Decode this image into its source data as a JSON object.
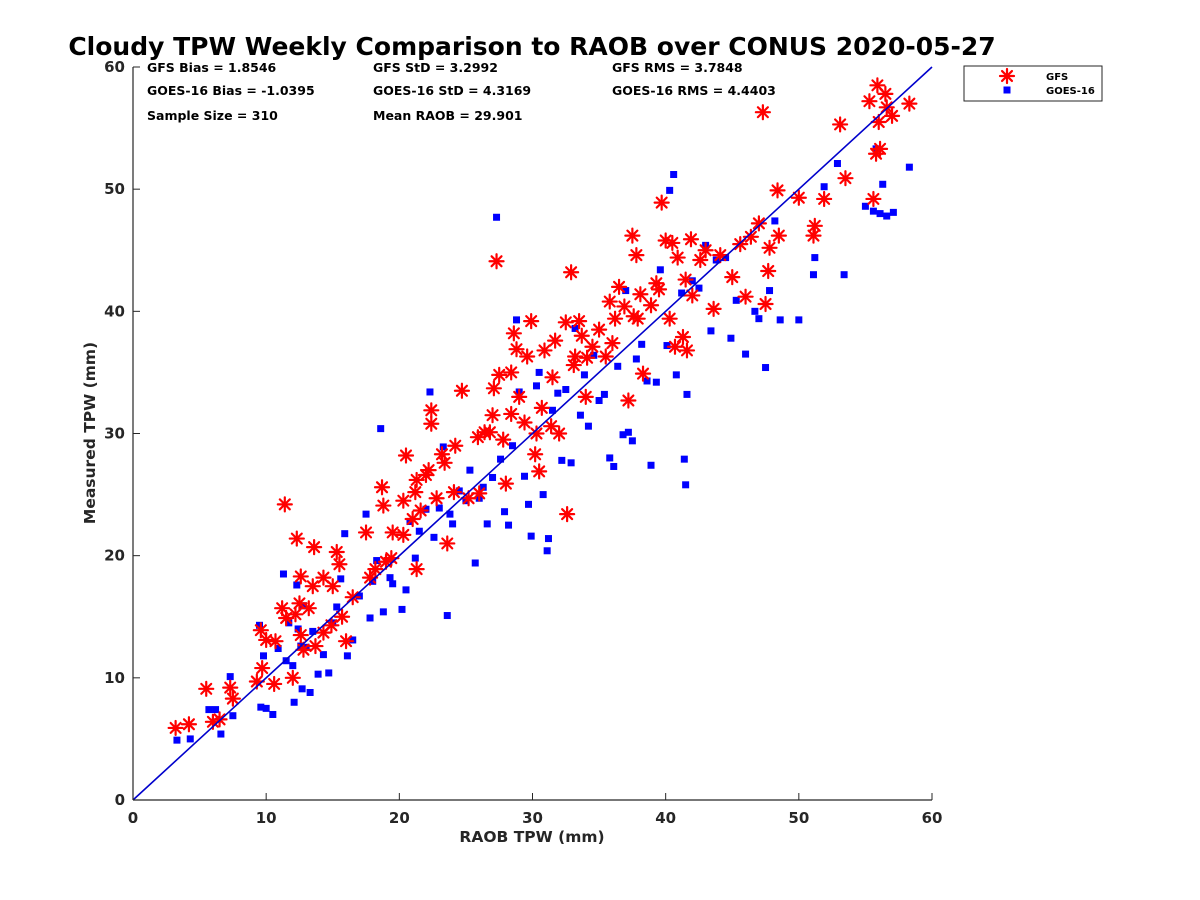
{
  "chart_data": {
    "type": "scatter",
    "title": "Cloudy TPW Weekly Comparison to RAOB over CONUS 2020-05-27",
    "xlabel": "RAOB TPW (mm)",
    "ylabel": "Measured TPW (mm)",
    "xlim": [
      0,
      60
    ],
    "ylim": [
      0,
      60
    ],
    "xticks": [
      "0",
      "10",
      "20",
      "30",
      "40",
      "50",
      "60"
    ],
    "yticks": [
      "0",
      "10",
      "20",
      "30",
      "40",
      "50",
      "60"
    ],
    "grid": false,
    "legend_position": "outside top-right",
    "reference_line": {
      "from": [
        0,
        0
      ],
      "to": [
        60,
        60
      ],
      "color": "#0000cc"
    },
    "stats": {
      "gfs_bias": "GFS Bias = 1.8546",
      "goes_bias": "GOES-16 Bias = -1.0395",
      "sample_size": "Sample Size = 310",
      "gfs_std": "GFS StD = 3.2992",
      "goes_std": "GOES-16 StD = 4.3169",
      "mean_raob": "Mean RAOB = 29.901",
      "gfs_rms": "GFS RMS = 3.7848",
      "goes_rms": "GOES-16 RMS = 4.4403"
    },
    "series": [
      {
        "name": "GFS",
        "color": "#ff0000",
        "marker": "asterisk",
        "points": [
          [
            3.2,
            5.9
          ],
          [
            4.2,
            6.2
          ],
          [
            5.5,
            9.1
          ],
          [
            6.0,
            6.4
          ],
          [
            6.5,
            6.6
          ],
          [
            7.3,
            9.2
          ],
          [
            7.5,
            8.3
          ],
          [
            9.3,
            9.7
          ],
          [
            9.7,
            10.8
          ],
          [
            10.0,
            13.1
          ],
          [
            9.6,
            13.9
          ],
          [
            10.6,
            9.5
          ],
          [
            10.7,
            13.0
          ],
          [
            11.2,
            15.7
          ],
          [
            11.4,
            24.2
          ],
          [
            11.5,
            14.9
          ],
          [
            12.0,
            10.0
          ],
          [
            12.2,
            15.2
          ],
          [
            12.3,
            21.4
          ],
          [
            12.5,
            16.1
          ],
          [
            12.6,
            13.5
          ],
          [
            12.6,
            18.3
          ],
          [
            12.8,
            12.3
          ],
          [
            13.2,
            15.7
          ],
          [
            13.5,
            17.5
          ],
          [
            13.6,
            20.7
          ],
          [
            13.7,
            12.6
          ],
          [
            14.3,
            18.2
          ],
          [
            14.3,
            13.7
          ],
          [
            14.9,
            14.3
          ],
          [
            15.0,
            17.5
          ],
          [
            15.3,
            20.3
          ],
          [
            15.5,
            19.3
          ],
          [
            15.7,
            15.0
          ],
          [
            16.0,
            13.0
          ],
          [
            16.5,
            16.6
          ],
          [
            17.5,
            21.9
          ],
          [
            17.8,
            18.2
          ],
          [
            18.2,
            18.9
          ],
          [
            18.7,
            25.6
          ],
          [
            18.8,
            24.1
          ],
          [
            19.0,
            19.5
          ],
          [
            19.4,
            19.8
          ],
          [
            19.5,
            21.9
          ],
          [
            20.3,
            21.7
          ],
          [
            20.3,
            24.5
          ],
          [
            20.5,
            28.2
          ],
          [
            21.0,
            23.0
          ],
          [
            21.2,
            25.2
          ],
          [
            21.3,
            26.2
          ],
          [
            21.3,
            18.9
          ],
          [
            21.6,
            23.7
          ],
          [
            22.0,
            26.6
          ],
          [
            22.2,
            27.0
          ],
          [
            22.4,
            31.9
          ],
          [
            22.4,
            30.8
          ],
          [
            22.8,
            24.7
          ],
          [
            23.2,
            28.3
          ],
          [
            23.4,
            27.6
          ],
          [
            23.6,
            21.0
          ],
          [
            24.1,
            25.2
          ],
          [
            24.2,
            29.0
          ],
          [
            24.7,
            33.5
          ],
          [
            25.2,
            24.7
          ],
          [
            25.9,
            29.7
          ],
          [
            26.0,
            25.1
          ],
          [
            26.4,
            30.1
          ],
          [
            26.8,
            30.1
          ],
          [
            27.0,
            31.5
          ],
          [
            27.1,
            33.7
          ],
          [
            27.3,
            44.1
          ],
          [
            27.5,
            34.8
          ],
          [
            27.8,
            29.5
          ],
          [
            28.0,
            25.9
          ],
          [
            28.4,
            35.0
          ],
          [
            28.4,
            31.6
          ],
          [
            28.6,
            38.2
          ],
          [
            28.8,
            36.9
          ],
          [
            29.0,
            33.0
          ],
          [
            29.4,
            30.9
          ],
          [
            29.6,
            36.3
          ],
          [
            29.9,
            39.2
          ],
          [
            30.2,
            28.3
          ],
          [
            30.3,
            30.0
          ],
          [
            30.5,
            26.9
          ],
          [
            30.7,
            32.1
          ],
          [
            30.9,
            36.8
          ],
          [
            31.4,
            30.6
          ],
          [
            31.5,
            34.6
          ],
          [
            31.7,
            37.6
          ],
          [
            32.0,
            30.0
          ],
          [
            32.5,
            39.1
          ],
          [
            32.6,
            23.4
          ],
          [
            32.9,
            43.2
          ],
          [
            33.1,
            35.6
          ],
          [
            33.2,
            36.3
          ],
          [
            33.5,
            39.2
          ],
          [
            33.7,
            38.0
          ],
          [
            34.0,
            33.0
          ],
          [
            34.1,
            36.2
          ],
          [
            34.5,
            37.1
          ],
          [
            35.0,
            38.5
          ],
          [
            35.5,
            36.3
          ],
          [
            35.8,
            40.8
          ],
          [
            36.0,
            37.4
          ],
          [
            36.2,
            39.4
          ],
          [
            36.5,
            42.0
          ],
          [
            36.9,
            40.4
          ],
          [
            37.2,
            32.7
          ],
          [
            37.5,
            46.2
          ],
          [
            37.6,
            39.6
          ],
          [
            37.8,
            44.6
          ],
          [
            37.9,
            39.4
          ],
          [
            38.1,
            41.4
          ],
          [
            38.3,
            34.9
          ],
          [
            38.9,
            40.5
          ],
          [
            39.3,
            42.3
          ],
          [
            39.5,
            41.8
          ],
          [
            39.7,
            48.9
          ],
          [
            40.0,
            45.8
          ],
          [
            40.3,
            39.4
          ],
          [
            40.5,
            45.6
          ],
          [
            40.7,
            37.1
          ],
          [
            40.9,
            44.4
          ],
          [
            41.3,
            37.9
          ],
          [
            41.5,
            42.6
          ],
          [
            41.6,
            36.8
          ],
          [
            41.9,
            45.9
          ],
          [
            42.0,
            41.3
          ],
          [
            42.6,
            44.2
          ],
          [
            43.0,
            45.0
          ],
          [
            43.6,
            40.2
          ],
          [
            44.1,
            44.6
          ],
          [
            45.0,
            42.8
          ],
          [
            45.6,
            45.5
          ],
          [
            46.0,
            41.2
          ],
          [
            46.4,
            46.1
          ],
          [
            47.0,
            47.2
          ],
          [
            47.3,
            56.3
          ],
          [
            47.5,
            40.6
          ],
          [
            47.7,
            43.3
          ],
          [
            47.8,
            45.2
          ],
          [
            48.4,
            49.9
          ],
          [
            48.5,
            46.2
          ],
          [
            50.0,
            49.3
          ],
          [
            51.1,
            46.2
          ],
          [
            51.2,
            47.0
          ],
          [
            51.9,
            49.2
          ],
          [
            53.1,
            55.3
          ],
          [
            53.5,
            50.9
          ],
          [
            55.3,
            57.2
          ],
          [
            55.6,
            49.2
          ],
          [
            55.8,
            52.9
          ],
          [
            55.9,
            58.5
          ],
          [
            56.0,
            55.5
          ],
          [
            56.1,
            53.3
          ],
          [
            56.5,
            57.8
          ],
          [
            56.6,
            56.7
          ],
          [
            57.0,
            56.0
          ],
          [
            58.3,
            57.0
          ]
        ]
      },
      {
        "name": "GOES-16",
        "color": "#0000ff",
        "marker": "square",
        "points": [
          [
            3.3,
            4.9
          ],
          [
            4.3,
            5.0
          ],
          [
            5.7,
            7.4
          ],
          [
            6.2,
            7.4
          ],
          [
            6.6,
            5.4
          ],
          [
            7.3,
            10.1
          ],
          [
            7.5,
            6.9
          ],
          [
            9.5,
            14.3
          ],
          [
            9.6,
            7.6
          ],
          [
            9.8,
            11.8
          ],
          [
            10.0,
            7.5
          ],
          [
            10.5,
            7.0
          ],
          [
            10.9,
            12.4
          ],
          [
            11.3,
            18.5
          ],
          [
            11.5,
            11.4
          ],
          [
            11.7,
            14.5
          ],
          [
            12.0,
            11.0
          ],
          [
            12.1,
            8.0
          ],
          [
            12.3,
            17.6
          ],
          [
            12.4,
            14.0
          ],
          [
            12.6,
            12.6
          ],
          [
            12.7,
            9.1
          ],
          [
            12.8,
            15.9
          ],
          [
            13.0,
            12.5
          ],
          [
            13.3,
            8.8
          ],
          [
            13.5,
            13.8
          ],
          [
            13.9,
            10.3
          ],
          [
            14.3,
            11.9
          ],
          [
            14.7,
            10.4
          ],
          [
            15.0,
            14.5
          ],
          [
            15.3,
            15.8
          ],
          [
            15.6,
            18.1
          ],
          [
            15.9,
            21.8
          ],
          [
            16.1,
            11.8
          ],
          [
            16.5,
            13.1
          ],
          [
            17.0,
            16.7
          ],
          [
            17.5,
            23.4
          ],
          [
            17.8,
            14.9
          ],
          [
            18.0,
            17.9
          ],
          [
            18.3,
            19.6
          ],
          [
            18.6,
            30.4
          ],
          [
            18.8,
            15.4
          ],
          [
            19.3,
            18.2
          ],
          [
            19.5,
            17.7
          ],
          [
            20.2,
            15.6
          ],
          [
            20.5,
            17.2
          ],
          [
            20.8,
            22.8
          ],
          [
            21.2,
            19.8
          ],
          [
            21.5,
            22.0
          ],
          [
            22.0,
            23.8
          ],
          [
            22.3,
            33.4
          ],
          [
            22.6,
            21.5
          ],
          [
            23.0,
            23.9
          ],
          [
            23.3,
            28.9
          ],
          [
            23.6,
            15.1
          ],
          [
            23.8,
            23.4
          ],
          [
            24.0,
            22.6
          ],
          [
            24.5,
            25.3
          ],
          [
            25.0,
            24.5
          ],
          [
            25.3,
            27.0
          ],
          [
            25.7,
            19.4
          ],
          [
            26.0,
            24.7
          ],
          [
            26.3,
            25.6
          ],
          [
            26.6,
            22.6
          ],
          [
            27.0,
            26.4
          ],
          [
            27.3,
            47.7
          ],
          [
            27.6,
            27.9
          ],
          [
            27.9,
            23.6
          ],
          [
            28.2,
            22.5
          ],
          [
            28.5,
            29.0
          ],
          [
            28.8,
            39.3
          ],
          [
            29.0,
            33.4
          ],
          [
            29.4,
            26.5
          ],
          [
            29.7,
            24.2
          ],
          [
            29.9,
            21.6
          ],
          [
            30.3,
            33.9
          ],
          [
            30.5,
            35.0
          ],
          [
            30.8,
            25.0
          ],
          [
            31.1,
            20.4
          ],
          [
            31.2,
            21.4
          ],
          [
            31.5,
            31.9
          ],
          [
            31.9,
            33.3
          ],
          [
            32.2,
            27.8
          ],
          [
            32.5,
            33.6
          ],
          [
            32.9,
            27.6
          ],
          [
            33.2,
            38.6
          ],
          [
            33.6,
            31.5
          ],
          [
            33.9,
            34.8
          ],
          [
            34.2,
            30.6
          ],
          [
            34.6,
            36.4
          ],
          [
            35.0,
            32.7
          ],
          [
            35.4,
            33.2
          ],
          [
            35.8,
            28.0
          ],
          [
            36.1,
            27.3
          ],
          [
            36.4,
            35.5
          ],
          [
            36.8,
            29.9
          ],
          [
            37.0,
            41.7
          ],
          [
            37.2,
            30.1
          ],
          [
            37.5,
            29.4
          ],
          [
            37.8,
            36.1
          ],
          [
            38.2,
            37.3
          ],
          [
            38.6,
            34.3
          ],
          [
            38.9,
            27.4
          ],
          [
            39.3,
            34.2
          ],
          [
            39.6,
            43.4
          ],
          [
            40.1,
            37.2
          ],
          [
            40.3,
            49.9
          ],
          [
            40.6,
            51.2
          ],
          [
            40.8,
            34.8
          ],
          [
            41.2,
            41.5
          ],
          [
            41.4,
            27.9
          ],
          [
            41.5,
            25.8
          ],
          [
            41.6,
            33.2
          ],
          [
            42.0,
            42.5
          ],
          [
            42.5,
            41.9
          ],
          [
            43.0,
            45.4
          ],
          [
            43.4,
            38.4
          ],
          [
            43.8,
            44.2
          ],
          [
            44.5,
            44.4
          ],
          [
            44.9,
            37.8
          ],
          [
            45.3,
            40.9
          ],
          [
            46.0,
            36.5
          ],
          [
            46.7,
            40.0
          ],
          [
            47.0,
            39.4
          ],
          [
            47.5,
            35.4
          ],
          [
            47.8,
            41.7
          ],
          [
            48.2,
            47.4
          ],
          [
            48.6,
            39.3
          ],
          [
            50.0,
            39.3
          ],
          [
            51.1,
            43.0
          ],
          [
            51.2,
            44.4
          ],
          [
            51.9,
            50.2
          ],
          [
            52.9,
            52.1
          ],
          [
            53.4,
            43.0
          ],
          [
            55.0,
            48.6
          ],
          [
            55.6,
            48.2
          ],
          [
            55.8,
            53.3
          ],
          [
            56.1,
            48.0
          ],
          [
            56.3,
            50.4
          ],
          [
            56.6,
            47.8
          ],
          [
            57.1,
            48.1
          ],
          [
            58.3,
            51.8
          ]
        ]
      }
    ]
  }
}
